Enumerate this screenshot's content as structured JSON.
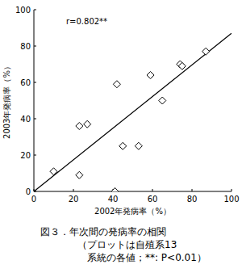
{
  "chart_data": {
    "type": "scatter",
    "title": "図３．年次間の発病率の相関",
    "caption": [
      "（プロットは自殖系13",
      "系統の各値；**: P<0.01）"
    ],
    "annotation": "r=0.802**",
    "x_label": "2002年発病率（%）",
    "y_label": "2003年発病率（%）",
    "x": [
      10,
      23,
      23,
      27,
      41,
      42,
      45,
      53,
      59,
      65,
      74,
      75,
      87
    ],
    "values": [
      11,
      9,
      36,
      37,
      0,
      59,
      25,
      25,
      64,
      50,
      70,
      69,
      77
    ],
    "color": "#000000",
    "marker": "diamond",
    "trend_line": {
      "x": [
        0,
        100
      ],
      "values": [
        0,
        87
      ]
    },
    "xlim": [
      0,
      100
    ],
    "ylim": [
      0,
      100
    ],
    "xticks": [
      0,
      20,
      40,
      60,
      80,
      100
    ],
    "yticks": [
      0,
      20,
      40,
      60,
      80,
      100
    ],
    "grid": false
  }
}
